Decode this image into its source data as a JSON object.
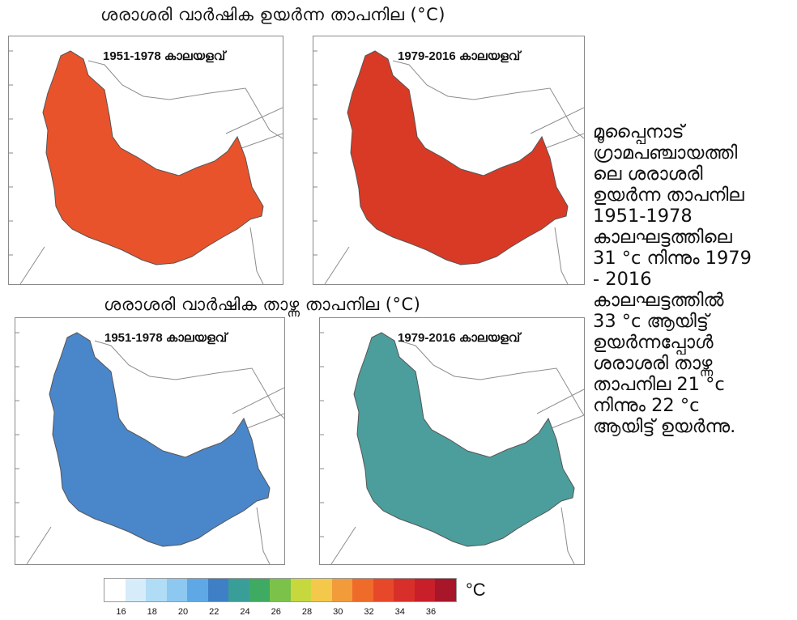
{
  "titles": {
    "high": "ശരാശരി വാർഷിക ഉയർന്ന താപനില (°C)",
    "low": "ശരാശരി വാർഷിക താഴ്ന്ന താപനില (°C)"
  },
  "panels": [
    {
      "period": "1951-1978 കാലയളവ്",
      "fill": "#E8532C"
    },
    {
      "period": "1979-2016 കാലയളവ്",
      "fill": "#D93A26"
    },
    {
      "period": "1951-1978 കാലയളവ്",
      "fill": "#4A86CA"
    },
    {
      "period": "1979-2016 കാലയളവ്",
      "fill": "#4C9E9D"
    }
  ],
  "side_text": [
    "മൂപ്പൈനാട്",
    "ഗ്രാമപഞ്ചായത്തി",
    "ലെ ശരാശരി",
    "ഉയർന്ന താപനില",
    "1951-1978",
    "കാലഘട്ടത്തിലെ",
    "31 °c നിന്നും 1979",
    "- 2016",
    "കാലഘട്ടത്തിൽ",
    "33 °c ആയിട്ട്",
    "ഉയർന്നപ്പോൾ",
    "ശരാശരി താഴ്ന്ന",
    "താപനില 21 °c",
    "നിന്നും 22 °c",
    "ആയിട്ട് ഉയർന്നു."
  ],
  "legend": {
    "unit": "°C",
    "colors": [
      "#FFFFFF",
      "#D6ECFA",
      "#B0DCF5",
      "#8CC8F0",
      "#5FA8E6",
      "#3F7FC6",
      "#3A9E98",
      "#3FAA62",
      "#7CC24A",
      "#C6D83E",
      "#F4C84A",
      "#F29B3A",
      "#EE6B2A",
      "#E8482A",
      "#D92F2A",
      "#C81F2A",
      "#A8162A"
    ],
    "ticks": [
      "16",
      "18",
      "20",
      "22",
      "24",
      "26",
      "28",
      "30",
      "32",
      "34",
      "36"
    ]
  }
}
